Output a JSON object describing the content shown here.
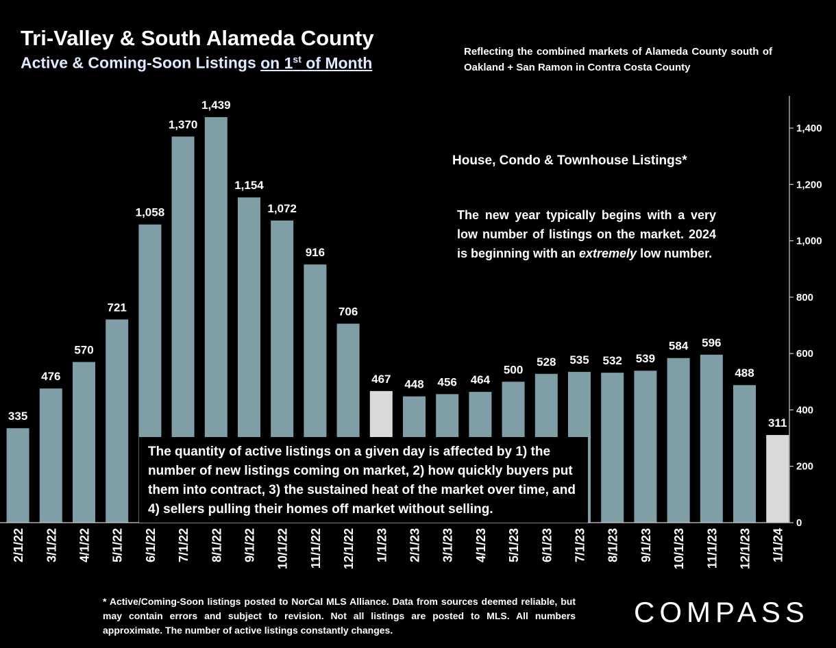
{
  "header": {
    "title": "Tri-Valley & South Alameda County",
    "subtitle_prefix": "Active & Coming-Soon Listings ",
    "subtitle_underlined": "on 1",
    "subtitle_sup": "st",
    "subtitle_suffix": " of Month",
    "note": "Reflecting the combined markets of Alameda County south of Oakland + San Ramon in Contra Costa County"
  },
  "chart_data": {
    "type": "bar",
    "categories": [
      "2/1/22",
      "3/1/22",
      "4/1/22",
      "5/1/22",
      "6/1/22",
      "7/1/22",
      "8/1/22",
      "9/1/22",
      "10/1/22",
      "11/1/22",
      "12/1/22",
      "1/1/23",
      "2/1/23",
      "3/1/23",
      "4/1/23",
      "5/1/23",
      "6/1/23",
      "7/1/23",
      "8/1/23",
      "9/1/23",
      "10/1/23",
      "11/1/23",
      "12/1/23",
      "1/1/24"
    ],
    "values": [
      335,
      476,
      570,
      721,
      1058,
      1370,
      1439,
      1154,
      1072,
      916,
      706,
      467,
      448,
      456,
      464,
      500,
      528,
      535,
      532,
      539,
      584,
      596,
      488,
      311
    ],
    "value_labels": [
      "335",
      "476",
      "570",
      "721",
      "1,058",
      "1,370",
      "1,439",
      "1,154",
      "1,072",
      "916",
      "706",
      "467",
      "448",
      "456",
      "464",
      "500",
      "528",
      "535",
      "532",
      "539",
      "584",
      "596",
      "488",
      "311"
    ],
    "highlight_categories": [
      "1/1/23",
      "1/1/24"
    ],
    "ylim": [
      0,
      1500
    ],
    "y_ticks": [
      0,
      200,
      400,
      600,
      800,
      1000,
      1200,
      1400
    ],
    "y_tick_labels": [
      "0",
      "200",
      "400",
      "600",
      "800",
      "1,000",
      "1,200",
      "1,400"
    ],
    "y_axis_side": "right",
    "grid": false,
    "colors": {
      "bar": "#7f9ea6",
      "highlight": "#d9d9d9",
      "background": "#000000",
      "text": "#ffffff"
    },
    "series_label": "House, Condo & Townhouse Listings*"
  },
  "annotation": {
    "before": "The new year typically begins with a very low number of listings on the market. 2024 is beginning with an ",
    "emphasis": "extremely",
    "after": " low number."
  },
  "explanation": "The quantity of active listings on a given day is affected by 1) the number of new listings coming on market, 2) how quickly buyers put them into contract, 3) the sustained heat of the market over time, and 4) sellers pulling their homes off market without selling.",
  "footnote": "* Active/Coming-Soon listings posted to NorCal MLS Alliance.  Data from sources deemed reliable, but may contain errors and subject to revision.  Not all listings are posted to MLS. All numbers approximate. The number of active listings constantly changes.",
  "logo": "COMPASS"
}
